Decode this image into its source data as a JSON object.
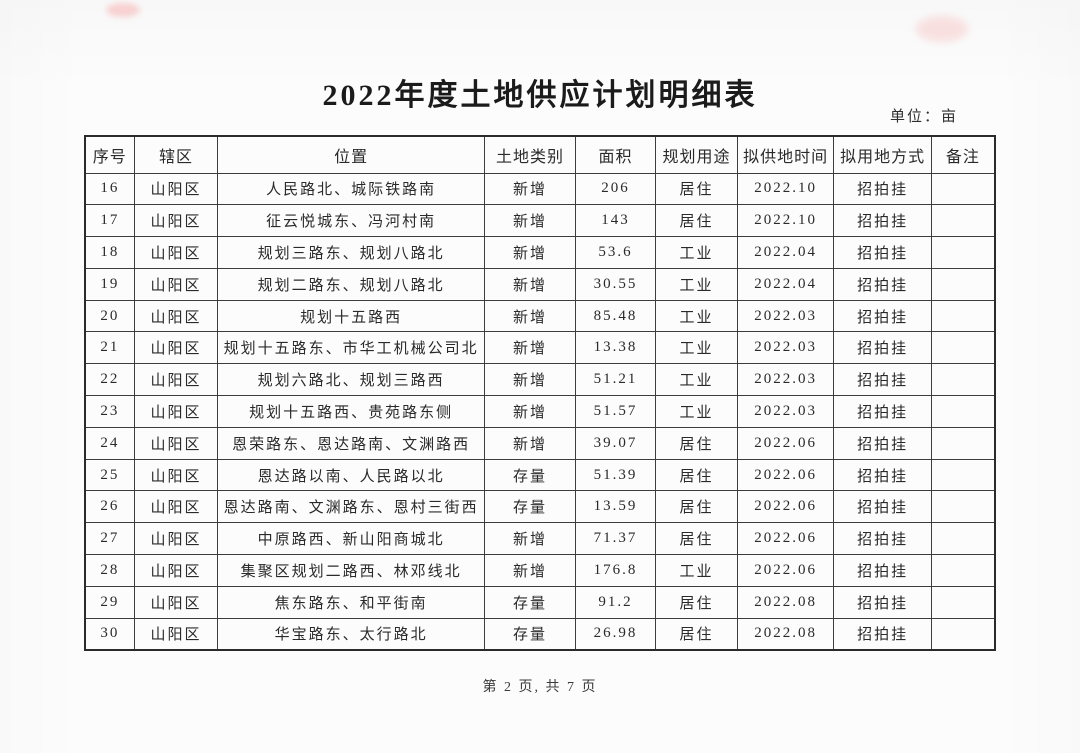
{
  "page": {
    "title": "2022年度土地供应计划明细表",
    "unit_label": "单位：亩",
    "footer": "第 2 页, 共 7 页"
  },
  "table": {
    "headers": [
      "序号",
      "辖区",
      "位置",
      "土地类别",
      "面积",
      "规划用途",
      "拟供地时间",
      "拟用地方式",
      "备注"
    ],
    "rows": [
      [
        "16",
        "山阳区",
        "人民路北、城际铁路南",
        "新增",
        "206",
        "居住",
        "2022.10",
        "招拍挂",
        ""
      ],
      [
        "17",
        "山阳区",
        "征云悦城东、冯河村南",
        "新增",
        "143",
        "居住",
        "2022.10",
        "招拍挂",
        ""
      ],
      [
        "18",
        "山阳区",
        "规划三路东、规划八路北",
        "新增",
        "53.6",
        "工业",
        "2022.04",
        "招拍挂",
        ""
      ],
      [
        "19",
        "山阳区",
        "规划二路东、规划八路北",
        "新增",
        "30.55",
        "工业",
        "2022.04",
        "招拍挂",
        ""
      ],
      [
        "20",
        "山阳区",
        "规划十五路西",
        "新增",
        "85.48",
        "工业",
        "2022.03",
        "招拍挂",
        ""
      ],
      [
        "21",
        "山阳区",
        "规划十五路东、市华工机械公司北",
        "新增",
        "13.38",
        "工业",
        "2022.03",
        "招拍挂",
        ""
      ],
      [
        "22",
        "山阳区",
        "规划六路北、规划三路西",
        "新增",
        "51.21",
        "工业",
        "2022.03",
        "招拍挂",
        ""
      ],
      [
        "23",
        "山阳区",
        "规划十五路西、贵苑路东侧",
        "新增",
        "51.57",
        "工业",
        "2022.03",
        "招拍挂",
        ""
      ],
      [
        "24",
        "山阳区",
        "恩荣路东、恩达路南、文渊路西",
        "新增",
        "39.07",
        "居住",
        "2022.06",
        "招拍挂",
        ""
      ],
      [
        "25",
        "山阳区",
        "恩达路以南、人民路以北",
        "存量",
        "51.39",
        "居住",
        "2022.06",
        "招拍挂",
        ""
      ],
      [
        "26",
        "山阳区",
        "恩达路南、文渊路东、恩村三街西",
        "存量",
        "13.59",
        "居住",
        "2022.06",
        "招拍挂",
        ""
      ],
      [
        "27",
        "山阳区",
        "中原路西、新山阳商城北",
        "新增",
        "71.37",
        "居住",
        "2022.06",
        "招拍挂",
        ""
      ],
      [
        "28",
        "山阳区",
        "集聚区规划二路西、林邓线北",
        "新增",
        "176.8",
        "工业",
        "2022.06",
        "招拍挂",
        ""
      ],
      [
        "29",
        "山阳区",
        "焦东路东、和平街南",
        "存量",
        "91.2",
        "居住",
        "2022.08",
        "招拍挂",
        ""
      ],
      [
        "30",
        "山阳区",
        "华宝路东、太行路北",
        "存量",
        "26.98",
        "居住",
        "2022.08",
        "招拍挂",
        ""
      ]
    ]
  },
  "colors": {
    "page_background": "#fcfcfc",
    "table_border": "#3d3d3d",
    "text": "#2a2a2a",
    "stamp_smudge": "#f47878"
  }
}
